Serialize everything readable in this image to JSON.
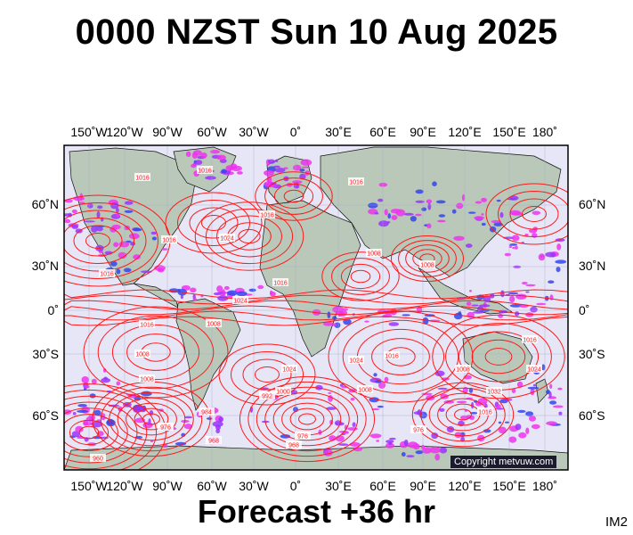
{
  "header": {
    "title": "0000 NZST Sun 10 Aug 2025"
  },
  "footer": {
    "forecast": "Forecast +36 hr",
    "tag": "IM2"
  },
  "map": {
    "copyright": "Copyright metvuw.com",
    "lon_labels_top": [
      "150˚W",
      "120˚W",
      "90˚W",
      "60˚W",
      "30˚W",
      "0˚",
      "30˚E",
      "60˚E",
      "90˚E",
      "120˚E",
      "150˚E",
      "180˚"
    ],
    "lon_labels_bottom": [
      "150˚W",
      "120˚W",
      "90˚W",
      "60˚W",
      "30˚W",
      "0˚",
      "30˚E",
      "60˚E",
      "90˚E",
      "120˚E",
      "150˚E",
      "180˚"
    ],
    "lat_labels": [
      "60˚N",
      "30˚N",
      "0˚",
      "30˚S",
      "60˚S"
    ],
    "isobar_labels": [
      "1016",
      "1016",
      "1016",
      "1016",
      "1024",
      "1016",
      "1016",
      "1016",
      "1008",
      "1008",
      "1024",
      "1024",
      "1016",
      "1008",
      "1008",
      "1016",
      "1016",
      "1008",
      "1024",
      "1032",
      "1008",
      "984",
      "976",
      "968",
      "976",
      "960",
      "968",
      "976",
      "992",
      "1000",
      "1008",
      "1016",
      "1024"
    ],
    "colors": {
      "ocean": "#e6e6f7",
      "land": "#b9c8b9",
      "isobar": "#ff1a1a",
      "precip_magenta": "#ee33ee",
      "precip_purple": "#9933ff",
      "precip_blue": "#3344ee"
    }
  }
}
